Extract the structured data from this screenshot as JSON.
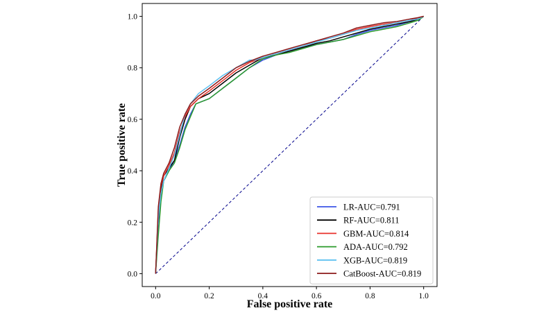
{
  "chart_data": {
    "type": "line",
    "title": "",
    "xlabel": "False positive rate",
    "ylabel": "True positive rate",
    "xlim": [
      -0.05,
      1.05
    ],
    "ylim": [
      -0.05,
      1.05
    ],
    "xticks": [
      0.0,
      0.2,
      0.4,
      0.6,
      0.8,
      1.0
    ],
    "yticks": [
      0.0,
      0.2,
      0.4,
      0.6,
      0.8,
      1.0
    ],
    "xtick_labels": [
      "0.0",
      "0.2",
      "0.4",
      "0.6",
      "0.8",
      "1.0"
    ],
    "ytick_labels": [
      "0.0",
      "0.2",
      "0.4",
      "0.6",
      "0.8",
      "1.0"
    ],
    "grid": false,
    "legend_position": "bottom-right",
    "diagonal": {
      "name": "chance",
      "style": "dashed",
      "color": "#00008b",
      "x": [
        0,
        1
      ],
      "y": [
        0,
        1
      ]
    },
    "series": [
      {
        "name": "LR-AUC=0.791",
        "color": "#3c55e6",
        "x": [
          0,
          0.01,
          0.02,
          0.03,
          0.05,
          0.07,
          0.09,
          0.11,
          0.13,
          0.15,
          0.2,
          0.25,
          0.3,
          0.35,
          0.4,
          0.45,
          0.5,
          0.55,
          0.6,
          0.65,
          0.7,
          0.75,
          0.8,
          0.85,
          0.9,
          0.95,
          0.98,
          1.0
        ],
        "y": [
          0,
          0.2,
          0.3,
          0.36,
          0.4,
          0.44,
          0.5,
          0.57,
          0.62,
          0.66,
          0.68,
          0.72,
          0.76,
          0.8,
          0.83,
          0.85,
          0.865,
          0.88,
          0.89,
          0.9,
          0.91,
          0.93,
          0.945,
          0.955,
          0.965,
          0.98,
          0.99,
          1.0
        ]
      },
      {
        "name": "RF-AUC=0.811",
        "color": "#000000",
        "x": [
          0,
          0.01,
          0.02,
          0.03,
          0.05,
          0.07,
          0.09,
          0.11,
          0.13,
          0.16,
          0.2,
          0.25,
          0.3,
          0.35,
          0.4,
          0.45,
          0.5,
          0.55,
          0.6,
          0.65,
          0.7,
          0.75,
          0.8,
          0.85,
          0.9,
          0.95,
          0.98,
          1.0
        ],
        "y": [
          0,
          0.23,
          0.33,
          0.38,
          0.41,
          0.44,
          0.53,
          0.6,
          0.65,
          0.68,
          0.7,
          0.74,
          0.78,
          0.81,
          0.84,
          0.85,
          0.865,
          0.88,
          0.895,
          0.905,
          0.92,
          0.935,
          0.95,
          0.96,
          0.97,
          0.98,
          0.99,
          1.0
        ]
      },
      {
        "name": "GBM-AUC=0.814",
        "color": "#e8312a",
        "x": [
          0,
          0.01,
          0.02,
          0.03,
          0.05,
          0.07,
          0.09,
          0.11,
          0.13,
          0.16,
          0.2,
          0.25,
          0.3,
          0.35,
          0.4,
          0.45,
          0.5,
          0.55,
          0.6,
          0.65,
          0.7,
          0.75,
          0.8,
          0.85,
          0.9,
          0.95,
          0.98,
          1.0
        ],
        "y": [
          0,
          0.25,
          0.34,
          0.38,
          0.42,
          0.47,
          0.55,
          0.61,
          0.65,
          0.68,
          0.71,
          0.75,
          0.79,
          0.82,
          0.84,
          0.855,
          0.87,
          0.885,
          0.905,
          0.915,
          0.93,
          0.95,
          0.96,
          0.97,
          0.975,
          0.985,
          0.995,
          1.0
        ]
      },
      {
        "name": "ADA-AUC=0.792",
        "color": "#2a9a2a",
        "x": [
          0,
          0.01,
          0.02,
          0.03,
          0.05,
          0.07,
          0.09,
          0.11,
          0.13,
          0.15,
          0.2,
          0.25,
          0.3,
          0.35,
          0.4,
          0.45,
          0.5,
          0.55,
          0.6,
          0.65,
          0.7,
          0.75,
          0.8,
          0.85,
          0.9,
          0.95,
          0.98,
          1.0
        ],
        "y": [
          0,
          0.15,
          0.28,
          0.36,
          0.4,
          0.43,
          0.49,
          0.56,
          0.61,
          0.66,
          0.68,
          0.72,
          0.76,
          0.8,
          0.835,
          0.85,
          0.86,
          0.875,
          0.89,
          0.9,
          0.91,
          0.925,
          0.94,
          0.95,
          0.96,
          0.975,
          0.985,
          1.0
        ]
      },
      {
        "name": "XGB-AUC=0.819",
        "color": "#5cc0f0",
        "x": [
          0,
          0.01,
          0.02,
          0.03,
          0.05,
          0.07,
          0.09,
          0.11,
          0.13,
          0.16,
          0.2,
          0.25,
          0.3,
          0.35,
          0.37,
          0.4,
          0.45,
          0.5,
          0.55,
          0.6,
          0.65,
          0.7,
          0.75,
          0.8,
          0.85,
          0.9,
          0.95,
          0.98,
          1.0
        ],
        "y": [
          0,
          0.22,
          0.31,
          0.36,
          0.41,
          0.46,
          0.54,
          0.62,
          0.66,
          0.7,
          0.73,
          0.77,
          0.8,
          0.83,
          0.83,
          0.84,
          0.855,
          0.87,
          0.885,
          0.9,
          0.915,
          0.93,
          0.945,
          0.955,
          0.965,
          0.975,
          0.985,
          0.99,
          1.0
        ]
      },
      {
        "name": "CatBoost-AUC=0.819",
        "color": "#8b1a1a",
        "x": [
          0,
          0.01,
          0.02,
          0.03,
          0.05,
          0.07,
          0.09,
          0.11,
          0.13,
          0.16,
          0.2,
          0.25,
          0.3,
          0.35,
          0.4,
          0.45,
          0.5,
          0.55,
          0.6,
          0.65,
          0.7,
          0.75,
          0.8,
          0.85,
          0.9,
          0.95,
          0.98,
          1.0
        ],
        "y": [
          0,
          0.26,
          0.35,
          0.39,
          0.43,
          0.49,
          0.57,
          0.62,
          0.66,
          0.69,
          0.72,
          0.76,
          0.8,
          0.825,
          0.845,
          0.86,
          0.875,
          0.89,
          0.905,
          0.92,
          0.935,
          0.955,
          0.965,
          0.975,
          0.98,
          0.99,
          0.995,
          1.0
        ]
      }
    ]
  }
}
